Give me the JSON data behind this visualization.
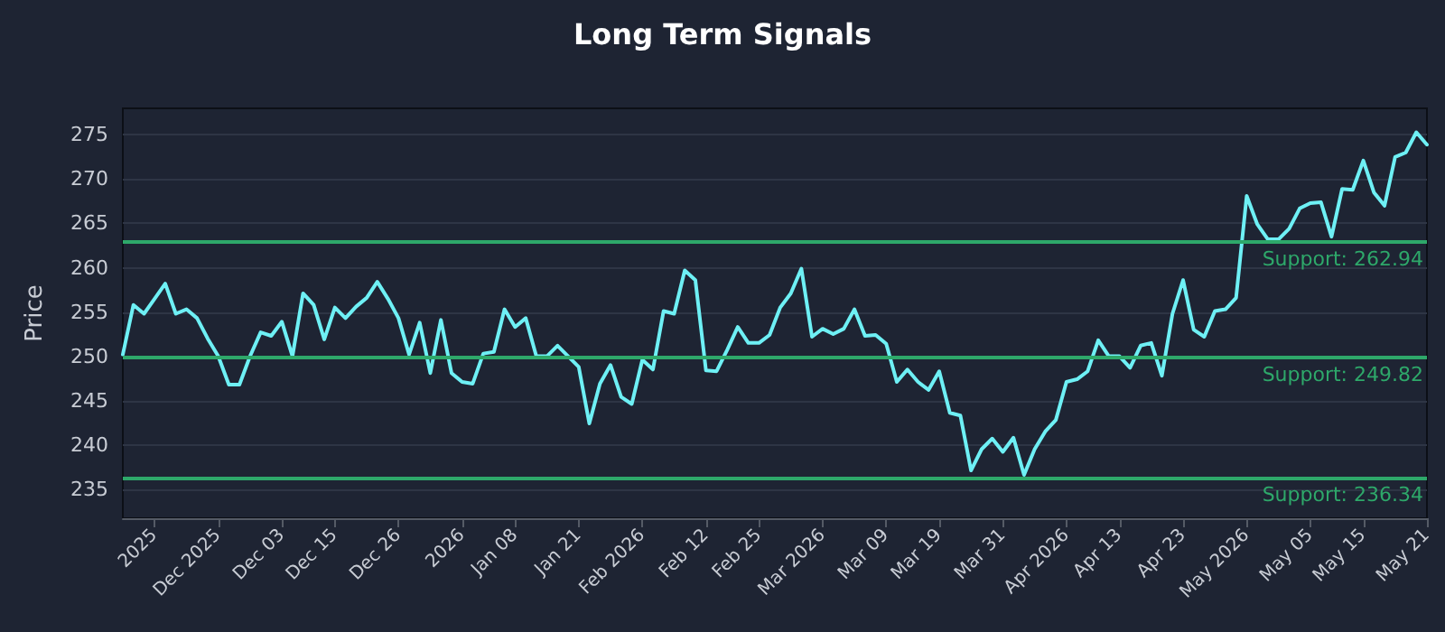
{
  "chart_data": {
    "type": "line",
    "title": "Long Term Signals",
    "ylabel": "Price",
    "categories": [
      null,
      null,
      null,
      "2025",
      null,
      null,
      null,
      null,
      null,
      "Dec 2025",
      null,
      null,
      null,
      null,
      null,
      "Dec 03",
      null,
      null,
      null,
      null,
      "Dec 15",
      null,
      null,
      null,
      null,
      null,
      "Dec 26",
      null,
      null,
      null,
      null,
      null,
      "2026",
      null,
      null,
      null,
      null,
      "Jan 08",
      null,
      null,
      null,
      null,
      null,
      "Jan 21",
      null,
      null,
      null,
      null,
      null,
      "Feb 2026",
      null,
      null,
      null,
      null,
      null,
      "Feb 12",
      null,
      null,
      null,
      null,
      "Feb 25",
      null,
      null,
      null,
      null,
      null,
      "Mar 2026",
      null,
      null,
      null,
      null,
      null,
      "Mar 09",
      null,
      null,
      null,
      null,
      "Mar 19",
      null,
      null,
      null,
      null,
      null,
      "Mar 31",
      null,
      null,
      null,
      null,
      null,
      "Apr 2026",
      null,
      null,
      null,
      null,
      "Apr 13",
      null,
      null,
      null,
      null,
      null,
      "Apr 23",
      null,
      null,
      null,
      null,
      null,
      "May 2026",
      null,
      null,
      null,
      null,
      null,
      "May 05",
      null,
      null,
      null,
      null,
      "May 15",
      null,
      null,
      null,
      null,
      null,
      "May 21"
    ],
    "series": [
      {
        "color": "#6ef0f5",
        "values": [
          250.2,
          255.8,
          254.8,
          256.5,
          258.2,
          254.8,
          255.3,
          254.3,
          252.0,
          250.0,
          246.8,
          246.8,
          250.0,
          252.7,
          252.3,
          253.9,
          250.0,
          257.1,
          255.8,
          251.9,
          255.5,
          254.3,
          255.6,
          256.6,
          258.4,
          256.5,
          254.3,
          250.2,
          253.8,
          248.1,
          254.1,
          248.1,
          247.1,
          246.9,
          250.3,
          250.5,
          255.3,
          253.3,
          254.3,
          250.0,
          250.0,
          251.2,
          250.0,
          248.8,
          242.4,
          246.9,
          249.0,
          245.4,
          244.6,
          249.6,
          248.5,
          255.1,
          254.8,
          259.7,
          258.6,
          248.4,
          248.3,
          250.7,
          253.3,
          251.5,
          251.5,
          252.4,
          255.5,
          257.1,
          259.9,
          252.2,
          253.1,
          252.5,
          253.1,
          255.3,
          252.3,
          252.4,
          251.4,
          247.1,
          248.5,
          247.1,
          246.2,
          248.3,
          243.6,
          243.3,
          237.1,
          239.5,
          240.7,
          239.2,
          240.8,
          236.6,
          239.5,
          241.5,
          242.8,
          247.1,
          247.4,
          248.3,
          251.8,
          250.0,
          250.0,
          248.7,
          251.2,
          251.5,
          247.8,
          254.8,
          258.6,
          253.0,
          252.2,
          255.1,
          255.3,
          256.6,
          268.1,
          264.9,
          263.2,
          263.2,
          264.4,
          266.7,
          267.3,
          267.4,
          263.5,
          268.9,
          268.8,
          272.1,
          268.5,
          267.0,
          272.5,
          273.0,
          275.3,
          273.9
        ]
      }
    ],
    "ylim": [
      231.7,
      278
    ],
    "yticks": [
      235,
      240,
      245,
      250,
      255,
      260,
      265,
      270,
      275
    ],
    "grid": "y",
    "marker": "none",
    "line_style": "solid",
    "ref_lines": [
      {
        "axis": "y",
        "value": 262.94,
        "label": "Support: 262.94",
        "color": "#2ea86a"
      },
      {
        "axis": "y",
        "value": 249.82,
        "label": "Support: 249.82",
        "color": "#2ea86a"
      },
      {
        "axis": "y",
        "value": 236.34,
        "label": "Support: 236.34",
        "color": "#2ea86a"
      }
    ]
  }
}
